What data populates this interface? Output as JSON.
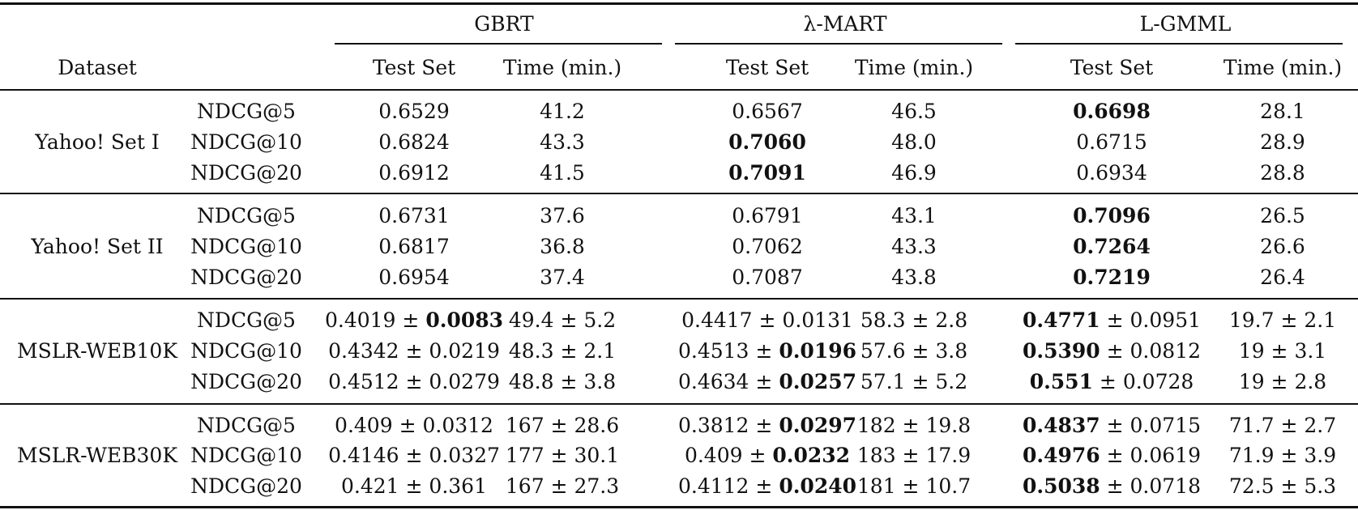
{
  "table": {
    "header": {
      "dataset_label": "Dataset",
      "groups": [
        {
          "name": "GBRT",
          "columns": [
            "Test Set",
            "Time (min.)"
          ]
        },
        {
          "name": "λ-MART",
          "columns": [
            "Test Set",
            "Time (min.)"
          ]
        },
        {
          "name": "L-GMML",
          "columns": [
            "Test Set",
            "Time (min.)"
          ]
        }
      ]
    },
    "sections": [
      {
        "dataset": "Yahoo! Set I",
        "rows": [
          {
            "metric": "NDCG@5",
            "cells": [
              {
                "main": "0.6529"
              },
              {
                "main": "41.2"
              },
              {
                "main": "0.6567"
              },
              {
                "main": "46.5"
              },
              {
                "main": "0.6698",
                "bold": "main"
              },
              {
                "main": "28.1"
              }
            ]
          },
          {
            "metric": "NDCG@10",
            "cells": [
              {
                "main": "0.6824"
              },
              {
                "main": "43.3"
              },
              {
                "main": "0.7060",
                "bold": "main"
              },
              {
                "main": "48.0"
              },
              {
                "main": "0.6715"
              },
              {
                "main": "28.9"
              }
            ]
          },
          {
            "metric": "NDCG@20",
            "cells": [
              {
                "main": "0.6912"
              },
              {
                "main": "41.5"
              },
              {
                "main": "0.7091",
                "bold": "main"
              },
              {
                "main": "46.9"
              },
              {
                "main": "0.6934"
              },
              {
                "main": "28.8"
              }
            ]
          }
        ]
      },
      {
        "dataset": "Yahoo! Set II",
        "rows": [
          {
            "metric": "NDCG@5",
            "cells": [
              {
                "main": "0.6731"
              },
              {
                "main": "37.6"
              },
              {
                "main": "0.6791"
              },
              {
                "main": "43.1"
              },
              {
                "main": "0.7096",
                "bold": "main"
              },
              {
                "main": "26.5"
              }
            ]
          },
          {
            "metric": "NDCG@10",
            "cells": [
              {
                "main": "0.6817"
              },
              {
                "main": "36.8"
              },
              {
                "main": "0.7062"
              },
              {
                "main": "43.3"
              },
              {
                "main": "0.7264",
                "bold": "main"
              },
              {
                "main": "26.6"
              }
            ]
          },
          {
            "metric": "NDCG@20",
            "cells": [
              {
                "main": "0.6954"
              },
              {
                "main": "37.4"
              },
              {
                "main": "0.7087"
              },
              {
                "main": "43.8"
              },
              {
                "main": "0.7219",
                "bold": "main"
              },
              {
                "main": "26.4"
              }
            ]
          }
        ]
      },
      {
        "dataset": "MSLR-WEB10K",
        "rows": [
          {
            "metric": "NDCG@5",
            "cells": [
              {
                "main": "0.4019",
                "pm": "0.0083",
                "bold": "pm"
              },
              {
                "main": "49.4",
                "pm": "5.2"
              },
              {
                "main": "0.4417",
                "pm": "0.0131"
              },
              {
                "main": "58.3",
                "pm": "2.8"
              },
              {
                "main": "0.4771",
                "pm": "0.0951",
                "bold": "main"
              },
              {
                "main": "19.7",
                "pm": "2.1"
              }
            ]
          },
          {
            "metric": "NDCG@10",
            "cells": [
              {
                "main": "0.4342",
                "pm": "0.0219"
              },
              {
                "main": "48.3",
                "pm": "2.1"
              },
              {
                "main": "0.4513",
                "pm": "0.0196",
                "bold": "pm"
              },
              {
                "main": "57.6",
                "pm": "3.8"
              },
              {
                "main": "0.5390",
                "pm": "0.0812",
                "bold": "main"
              },
              {
                "main": "19",
                "pm": "3.1"
              }
            ]
          },
          {
            "metric": "NDCG@20",
            "cells": [
              {
                "main": "0.4512",
                "pm": "0.0279"
              },
              {
                "main": "48.8",
                "pm": "3.8"
              },
              {
                "main": "0.4634",
                "pm": "0.0257",
                "bold": "pm"
              },
              {
                "main": "57.1",
                "pm": "5.2"
              },
              {
                "main": "0.551",
                "pm": "0.0728",
                "bold": "main"
              },
              {
                "main": "19",
                "pm": "2.8"
              }
            ]
          }
        ]
      },
      {
        "dataset": "MSLR-WEB30K",
        "rows": [
          {
            "metric": "NDCG@5",
            "cells": [
              {
                "main": "0.409",
                "pm": "0.0312"
              },
              {
                "main": "167",
                "pm": "28.6"
              },
              {
                "main": "0.3812",
                "pm": "0.0297",
                "bold": "pm"
              },
              {
                "main": "182",
                "pm": "19.8"
              },
              {
                "main": "0.4837",
                "pm": "0.0715",
                "bold": "main"
              },
              {
                "main": "71.7",
                "pm": "2.7"
              }
            ]
          },
          {
            "metric": "NDCG@10",
            "cells": [
              {
                "main": "0.4146",
                "pm": "0.0327"
              },
              {
                "main": "177",
                "pm": "30.1"
              },
              {
                "main": "0.409",
                "pm": "0.0232",
                "bold": "pm"
              },
              {
                "main": "183",
                "pm": "17.9"
              },
              {
                "main": "0.4976",
                "pm": "0.0619",
                "bold": "main"
              },
              {
                "main": "71.9",
                "pm": "3.9"
              }
            ]
          },
          {
            "metric": "NDCG@20",
            "cells": [
              {
                "main": "0.421",
                "pm": "0.361"
              },
              {
                "main": "167",
                "pm": "27.3"
              },
              {
                "main": "0.4112",
                "pm": "0.0240",
                "bold": "pm"
              },
              {
                "main": "181",
                "pm": "10.7"
              },
              {
                "main": "0.5038",
                "pm": "0.0718",
                "bold": "main"
              },
              {
                "main": "72.5",
                "pm": "5.3"
              }
            ]
          }
        ]
      }
    ]
  }
}
